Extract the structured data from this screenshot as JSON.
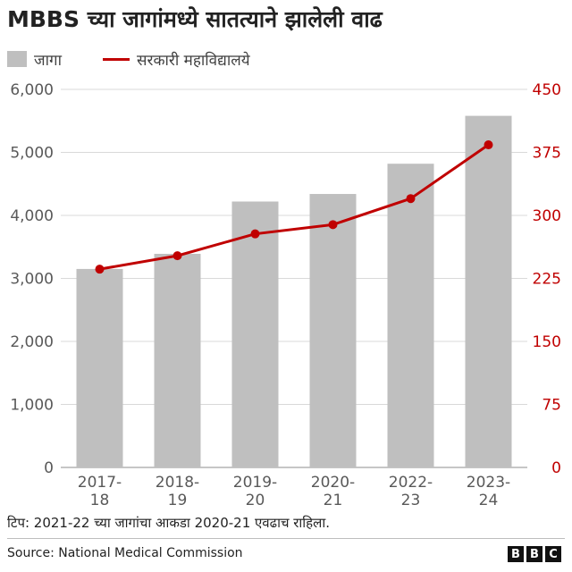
{
  "header": {
    "title": "MBBS च्या जागांमध्ये सातत्याने झालेली वाढ"
  },
  "legend": {
    "bars_label": "जागा",
    "line_label": "सरकारी महाविद्यालये"
  },
  "footer": {
    "note": "टिप: 2021-22 च्या जागांचा आकडा 2020-21 एवढाच राहिला.",
    "source": "Source: National Medical Commission",
    "logo_letters": [
      "B",
      "B",
      "C"
    ]
  },
  "colors": {
    "bar": "#bfbfbf",
    "line": "#c00000",
    "grid": "#d9d9d9",
    "left_axis_text": "#595959",
    "right_axis_text": "#c00000"
  },
  "chart_data": {
    "type": "bar",
    "categories": [
      [
        "2017-",
        "18"
      ],
      [
        "2018-",
        "19"
      ],
      [
        "2019-",
        "20"
      ],
      [
        "2020-",
        "21"
      ],
      [
        "2022-",
        "23"
      ],
      [
        "2023-",
        "24"
      ]
    ],
    "series": [
      {
        "name": "जागा",
        "type": "bar",
        "axis": "left",
        "values": [
          3150,
          3390,
          4220,
          4340,
          4820,
          5580
        ]
      },
      {
        "name": "सरकारी महाविद्यालये",
        "type": "line",
        "axis": "right",
        "values": [
          236,
          252,
          278,
          289,
          320,
          384
        ]
      }
    ],
    "left_axis": {
      "ylim": [
        0,
        6000
      ],
      "ticks": [
        0,
        1000,
        2000,
        3000,
        4000,
        5000,
        6000
      ],
      "tick_labels": [
        "0",
        "1,000",
        "2,000",
        "3,000",
        "4,000",
        "5,000",
        "6,000"
      ]
    },
    "right_axis": {
      "ylim": [
        0,
        450
      ],
      "ticks": [
        0,
        75,
        150,
        225,
        300,
        375,
        450
      ],
      "tick_labels": [
        "0",
        "75",
        "150",
        "225",
        "300",
        "375",
        "450"
      ]
    },
    "grid": true,
    "legend_position": "top-left"
  }
}
